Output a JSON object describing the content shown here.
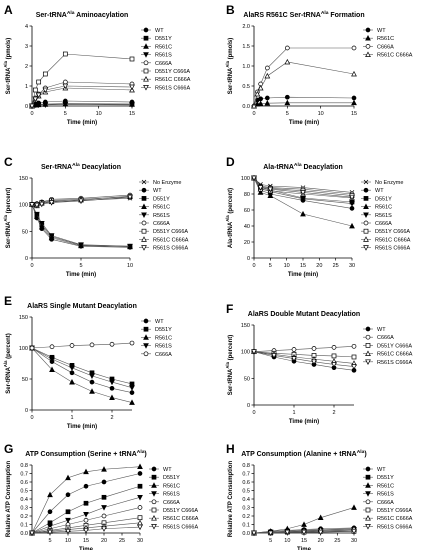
{
  "chart_data": [
    {
      "type": "line",
      "letter": "A",
      "title": "Ser-tRNA",
      "title_sup": "Ala",
      "title_tail": " Aminoacylation",
      "xlabel": "Time (min)",
      "ylabel": "Ser-tRNA",
      "ylabel_sup": "Ala",
      "ylabel_tail": " (pmols)",
      "xlim": [
        0,
        15
      ],
      "ylim": [
        0,
        4
      ],
      "xticks": [
        0,
        5,
        10,
        15
      ],
      "yticks": [
        0,
        1,
        2,
        3,
        4
      ],
      "x": [
        0,
        0.5,
        1,
        2,
        5,
        15
      ],
      "series": [
        {
          "name": "WT",
          "marker": "circle-filled",
          "values": [
            0,
            0.1,
            0.15,
            0.2,
            0.25,
            0.2
          ]
        },
        {
          "name": "D551Y",
          "marker": "square-filled",
          "values": [
            0,
            0.05,
            0.08,
            0.1,
            0.12,
            0.1
          ]
        },
        {
          "name": "R561C",
          "marker": "triangle-up-filled",
          "values": [
            0,
            0.05,
            0.06,
            0.08,
            0.1,
            0.08
          ]
        },
        {
          "name": "R561S",
          "marker": "triangle-down-filled",
          "values": [
            0,
            0.05,
            0.05,
            0.06,
            0.08,
            0.06
          ]
        },
        {
          "name": "C666A",
          "marker": "circle-open",
          "values": [
            0,
            0.4,
            0.6,
            0.9,
            1.2,
            1.1
          ]
        },
        {
          "name": "D551Y C666A",
          "marker": "square-open",
          "values": [
            0,
            0.8,
            1.2,
            1.6,
            2.6,
            2.35
          ]
        },
        {
          "name": "R561C C666A",
          "marker": "triangle-up-open",
          "values": [
            0,
            0.3,
            0.5,
            0.7,
            0.9,
            0.8
          ]
        },
        {
          "name": "R561S C666A",
          "marker": "triangle-down-open",
          "values": [
            0,
            0.35,
            0.55,
            0.8,
            1.0,
            0.95
          ]
        }
      ]
    },
    {
      "type": "line",
      "letter": "B",
      "title": "AlaRS R561C Ser-tRNA",
      "title_sup": "Ala",
      "title_tail": " Formation",
      "xlabel": "Time (min)",
      "ylabel": "Ser-tRNA",
      "ylabel_sup": "Ala",
      "ylabel_tail": " (pmols)",
      "xlim": [
        0,
        15
      ],
      "ylim": [
        0,
        2.0
      ],
      "xticks": [
        0,
        5,
        10,
        15
      ],
      "yticks": [
        0.0,
        0.5,
        1.0,
        1.5,
        2.0
      ],
      "x": [
        0,
        0.5,
        1,
        2,
        5,
        15
      ],
      "series": [
        {
          "name": "WT",
          "marker": "circle-filled",
          "values": [
            0,
            0.15,
            0.18,
            0.2,
            0.22,
            0.2
          ]
        },
        {
          "name": "R561C",
          "marker": "triangle-up-filled",
          "values": [
            0,
            0.05,
            0.06,
            0.07,
            0.08,
            0.08
          ]
        },
        {
          "name": "C666A",
          "marker": "circle-open",
          "values": [
            0,
            0.35,
            0.55,
            0.95,
            1.45,
            1.45
          ]
        },
        {
          "name": "R561C C666A",
          "marker": "triangle-up-open",
          "values": [
            0,
            0.3,
            0.45,
            0.75,
            1.1,
            0.8
          ]
        }
      ]
    },
    {
      "type": "line",
      "letter": "C",
      "title": "Ser-tRNA",
      "title_sup": "Ala",
      "title_tail": " Deacylation",
      "xlabel": "Time (min)",
      "ylabel": "Ser-tRNA",
      "ylabel_sup": "Ala",
      "ylabel_tail": " (percent)",
      "xlim": [
        0,
        10
      ],
      "ylim": [
        0,
        150
      ],
      "xticks": [
        0,
        5,
        10
      ],
      "yticks": [
        0,
        50,
        100,
        150
      ],
      "x": [
        0,
        0.5,
        1,
        2,
        5,
        10
      ],
      "series": [
        {
          "name": "No Enzyme",
          "marker": "x",
          "values": [
            100,
            98,
            102,
            105,
            108,
            112
          ]
        },
        {
          "name": "WT",
          "marker": "circle-filled",
          "values": [
            100,
            75,
            55,
            35,
            22,
            20
          ]
        },
        {
          "name": "D551Y",
          "marker": "square-filled",
          "values": [
            100,
            80,
            62,
            40,
            24,
            22
          ]
        },
        {
          "name": "R561C",
          "marker": "triangle-up-filled",
          "values": [
            100,
            78,
            58,
            38,
            23,
            21
          ]
        },
        {
          "name": "R561S",
          "marker": "triangle-down-filled",
          "values": [
            100,
            82,
            65,
            42,
            25,
            22
          ]
        },
        {
          "name": "C666A",
          "marker": "circle-open",
          "values": [
            100,
            102,
            105,
            110,
            112,
            118
          ]
        },
        {
          "name": "D551Y C666A",
          "marker": "square-open",
          "values": [
            100,
            100,
            104,
            108,
            110,
            115
          ]
        },
        {
          "name": "R561C C666A",
          "marker": "triangle-up-open",
          "values": [
            100,
            98,
            103,
            106,
            109,
            116
          ]
        },
        {
          "name": "R561S C666A",
          "marker": "triangle-down-open",
          "values": [
            100,
            99,
            101,
            104,
            107,
            114
          ]
        }
      ]
    },
    {
      "type": "line",
      "letter": "D",
      "title": "Ala-tRNA",
      "title_sup": "Ala",
      "title_tail": " Deacylation",
      "xlabel": "Time (min)",
      "ylabel": "Ala-tRNA",
      "ylabel_sup": "Ala",
      "ylabel_tail": " (percent)",
      "xlim": [
        0,
        30
      ],
      "ylim": [
        0,
        100
      ],
      "xticks": [
        0,
        5,
        10,
        15,
        20,
        25,
        30
      ],
      "yticks": [
        0,
        20,
        40,
        60,
        80,
        100
      ],
      "x": [
        0,
        2,
        5,
        15,
        30
      ],
      "series": [
        {
          "name": "No Enzyme",
          "marker": "x",
          "values": [
            100,
            92,
            90,
            88,
            82
          ]
        },
        {
          "name": "WT",
          "marker": "circle-filled",
          "values": [
            100,
            85,
            80,
            72,
            62
          ]
        },
        {
          "name": "D551Y",
          "marker": "square-filled",
          "values": [
            100,
            88,
            85,
            75,
            70
          ]
        },
        {
          "name": "R561C",
          "marker": "triangle-up-filled",
          "values": [
            100,
            82,
            78,
            55,
            40
          ]
        },
        {
          "name": "R561S",
          "marker": "triangle-down-filled",
          "values": [
            100,
            87,
            83,
            74,
            68
          ]
        },
        {
          "name": "C666A",
          "marker": "circle-open",
          "values": [
            100,
            90,
            88,
            86,
            80
          ]
        },
        {
          "name": "D551Y C666A",
          "marker": "square-open",
          "values": [
            100,
            89,
            87,
            84,
            78
          ]
        },
        {
          "name": "R561C C666A",
          "marker": "triangle-up-open",
          "values": [
            100,
            86,
            84,
            80,
            75
          ]
        },
        {
          "name": "R561S C666A",
          "marker": "triangle-down-open",
          "values": [
            100,
            88,
            86,
            82,
            76
          ]
        }
      ]
    },
    {
      "type": "line",
      "letter": "E",
      "title": "AlaRS Single Mutant Deacylation",
      "title_sup": "",
      "title_tail": "",
      "xlabel": "Time (min)",
      "ylabel": "Ser-tRNA",
      "ylabel_sup": "Ala",
      "ylabel_tail": " (percent)",
      "xlim": [
        0,
        2.5
      ],
      "ylim": [
        0,
        150
      ],
      "xticks": [
        0,
        1,
        2
      ],
      "yticks": [
        0,
        50,
        100,
        150
      ],
      "x": [
        0,
        0.5,
        1,
        1.5,
        2,
        2.5
      ],
      "series": [
        {
          "name": "WT",
          "marker": "circle-filled",
          "values": [
            100,
            78,
            60,
            45,
            35,
            28
          ]
        },
        {
          "name": "D551Y",
          "marker": "square-filled",
          "values": [
            100,
            85,
            72,
            60,
            50,
            42
          ]
        },
        {
          "name": "R561C",
          "marker": "triangle-up-filled",
          "values": [
            100,
            65,
            45,
            30,
            20,
            12
          ]
        },
        {
          "name": "R561S",
          "marker": "triangle-down-filled",
          "values": [
            100,
            82,
            68,
            55,
            45,
            36
          ]
        },
        {
          "name": "C666A",
          "marker": "circle-open",
          "values": [
            100,
            102,
            104,
            105,
            106,
            108
          ]
        }
      ]
    },
    {
      "type": "line",
      "letter": "F",
      "title": "AlaRS Double Mutant Deacylation",
      "title_sup": "",
      "title_tail": "",
      "xlabel": "Time (min)",
      "ylabel": "Ser-tRNA",
      "ylabel_sup": "Ala",
      "ylabel_tail": " (percent)",
      "xlim": [
        0,
        2.5
      ],
      "ylim": [
        0,
        150
      ],
      "xticks": [
        0,
        1,
        2
      ],
      "yticks": [
        0,
        50,
        100,
        150
      ],
      "x": [
        0,
        0.5,
        1,
        1.5,
        2,
        2.5
      ],
      "series": [
        {
          "name": "WT",
          "marker": "circle-filled",
          "values": [
            100,
            90,
            82,
            76,
            70,
            65
          ]
        },
        {
          "name": "C666A",
          "marker": "circle-open",
          "values": [
            100,
            102,
            104,
            106,
            108,
            110
          ]
        },
        {
          "name": "D551Y C666A",
          "marker": "square-open",
          "values": [
            100,
            97,
            95,
            93,
            92,
            90
          ]
        },
        {
          "name": "R561C C666A",
          "marker": "triangle-up-open",
          "values": [
            100,
            95,
            90,
            86,
            82,
            78
          ]
        },
        {
          "name": "R561S C666A",
          "marker": "triangle-down-open",
          "values": [
            100,
            93,
            87,
            81,
            76,
            72
          ]
        }
      ]
    },
    {
      "type": "line",
      "letter": "G",
      "title": "ATP Consumption (Serine + tRNA",
      "title_sup": "Ala",
      "title_tail": ")",
      "xlabel": "Time",
      "ylabel": "Relative ATP Consumption",
      "ylabel_sup": "",
      "ylabel_tail": "",
      "xlim": [
        0,
        30
      ],
      "ylim": [
        0,
        0.8
      ],
      "xticks": [
        5,
        10,
        15,
        20,
        25,
        30
      ],
      "yticks": [
        0.0,
        0.1,
        0.2,
        0.3,
        0.4,
        0.5,
        0.6,
        0.7,
        0.8
      ],
      "x": [
        0,
        5,
        10,
        15,
        20,
        30
      ],
      "series": [
        {
          "name": "WT",
          "marker": "circle-filled",
          "values": [
            0,
            0.25,
            0.45,
            0.55,
            0.6,
            0.7
          ]
        },
        {
          "name": "D551Y",
          "marker": "square-filled",
          "values": [
            0,
            0.12,
            0.25,
            0.35,
            0.42,
            0.55
          ]
        },
        {
          "name": "R561C",
          "marker": "triangle-up-filled",
          "values": [
            0,
            0.45,
            0.65,
            0.72,
            0.75,
            0.78
          ]
        },
        {
          "name": "R561S",
          "marker": "triangle-down-filled",
          "values": [
            0,
            0.08,
            0.15,
            0.22,
            0.3,
            0.42
          ]
        },
        {
          "name": "C666A",
          "marker": "circle-open",
          "values": [
            0,
            0.05,
            0.1,
            0.15,
            0.2,
            0.3
          ]
        },
        {
          "name": "D551Y C666A",
          "marker": "square-open",
          "values": [
            0,
            0.03,
            0.06,
            0.09,
            0.12,
            0.18
          ]
        },
        {
          "name": "R561C C666A",
          "marker": "triangle-up-open",
          "values": [
            0,
            0.02,
            0.04,
            0.06,
            0.08,
            0.12
          ]
        },
        {
          "name": "R561S C666A",
          "marker": "triangle-down-open",
          "values": [
            0,
            0.01,
            0.02,
            0.03,
            0.05,
            0.07
          ]
        }
      ]
    },
    {
      "type": "line",
      "letter": "H",
      "title": "ATP Consumption (Alanine + tRNA",
      "title_sup": "Ala",
      "title_tail": ")",
      "xlabel": "Time",
      "ylabel": "Relative ATP Consumption",
      "ylabel_sup": "",
      "ylabel_tail": "",
      "xlim": [
        0,
        30
      ],
      "ylim": [
        0,
        0.8
      ],
      "xticks": [
        5,
        10,
        15,
        20,
        25,
        30
      ],
      "yticks": [
        0.0,
        0.1,
        0.2,
        0.3,
        0.4,
        0.5,
        0.6,
        0.7,
        0.8
      ],
      "x": [
        0,
        5,
        10,
        15,
        20,
        30
      ],
      "series": [
        {
          "name": "WT",
          "marker": "circle-filled",
          "values": [
            0,
            0.02,
            0.03,
            0.04,
            0.05,
            0.06
          ]
        },
        {
          "name": "D551Y",
          "marker": "square-filled",
          "values": [
            0,
            0.01,
            0.02,
            0.03,
            0.03,
            0.04
          ]
        },
        {
          "name": "R561C",
          "marker": "triangle-up-filled",
          "values": [
            0,
            0.02,
            0.05,
            0.1,
            0.18,
            0.3
          ]
        },
        {
          "name": "R561S",
          "marker": "triangle-down-filled",
          "values": [
            0,
            0.01,
            0.02,
            0.02,
            0.03,
            0.04
          ]
        },
        {
          "name": "C666A",
          "marker": "circle-open",
          "values": [
            0,
            0.01,
            0.01,
            0.02,
            0.02,
            0.03
          ]
        },
        {
          "name": "D551Y C666A",
          "marker": "square-open",
          "values": [
            0,
            0.0,
            0.01,
            0.01,
            0.02,
            0.02
          ]
        },
        {
          "name": "R561C C666A",
          "marker": "triangle-up-open",
          "values": [
            0,
            0.01,
            0.02,
            0.03,
            0.04,
            0.05
          ]
        },
        {
          "name": "R561S C666A",
          "marker": "triangle-down-open",
          "values": [
            0,
            0.0,
            0.01,
            0.01,
            0.01,
            0.02
          ]
        }
      ]
    }
  ]
}
